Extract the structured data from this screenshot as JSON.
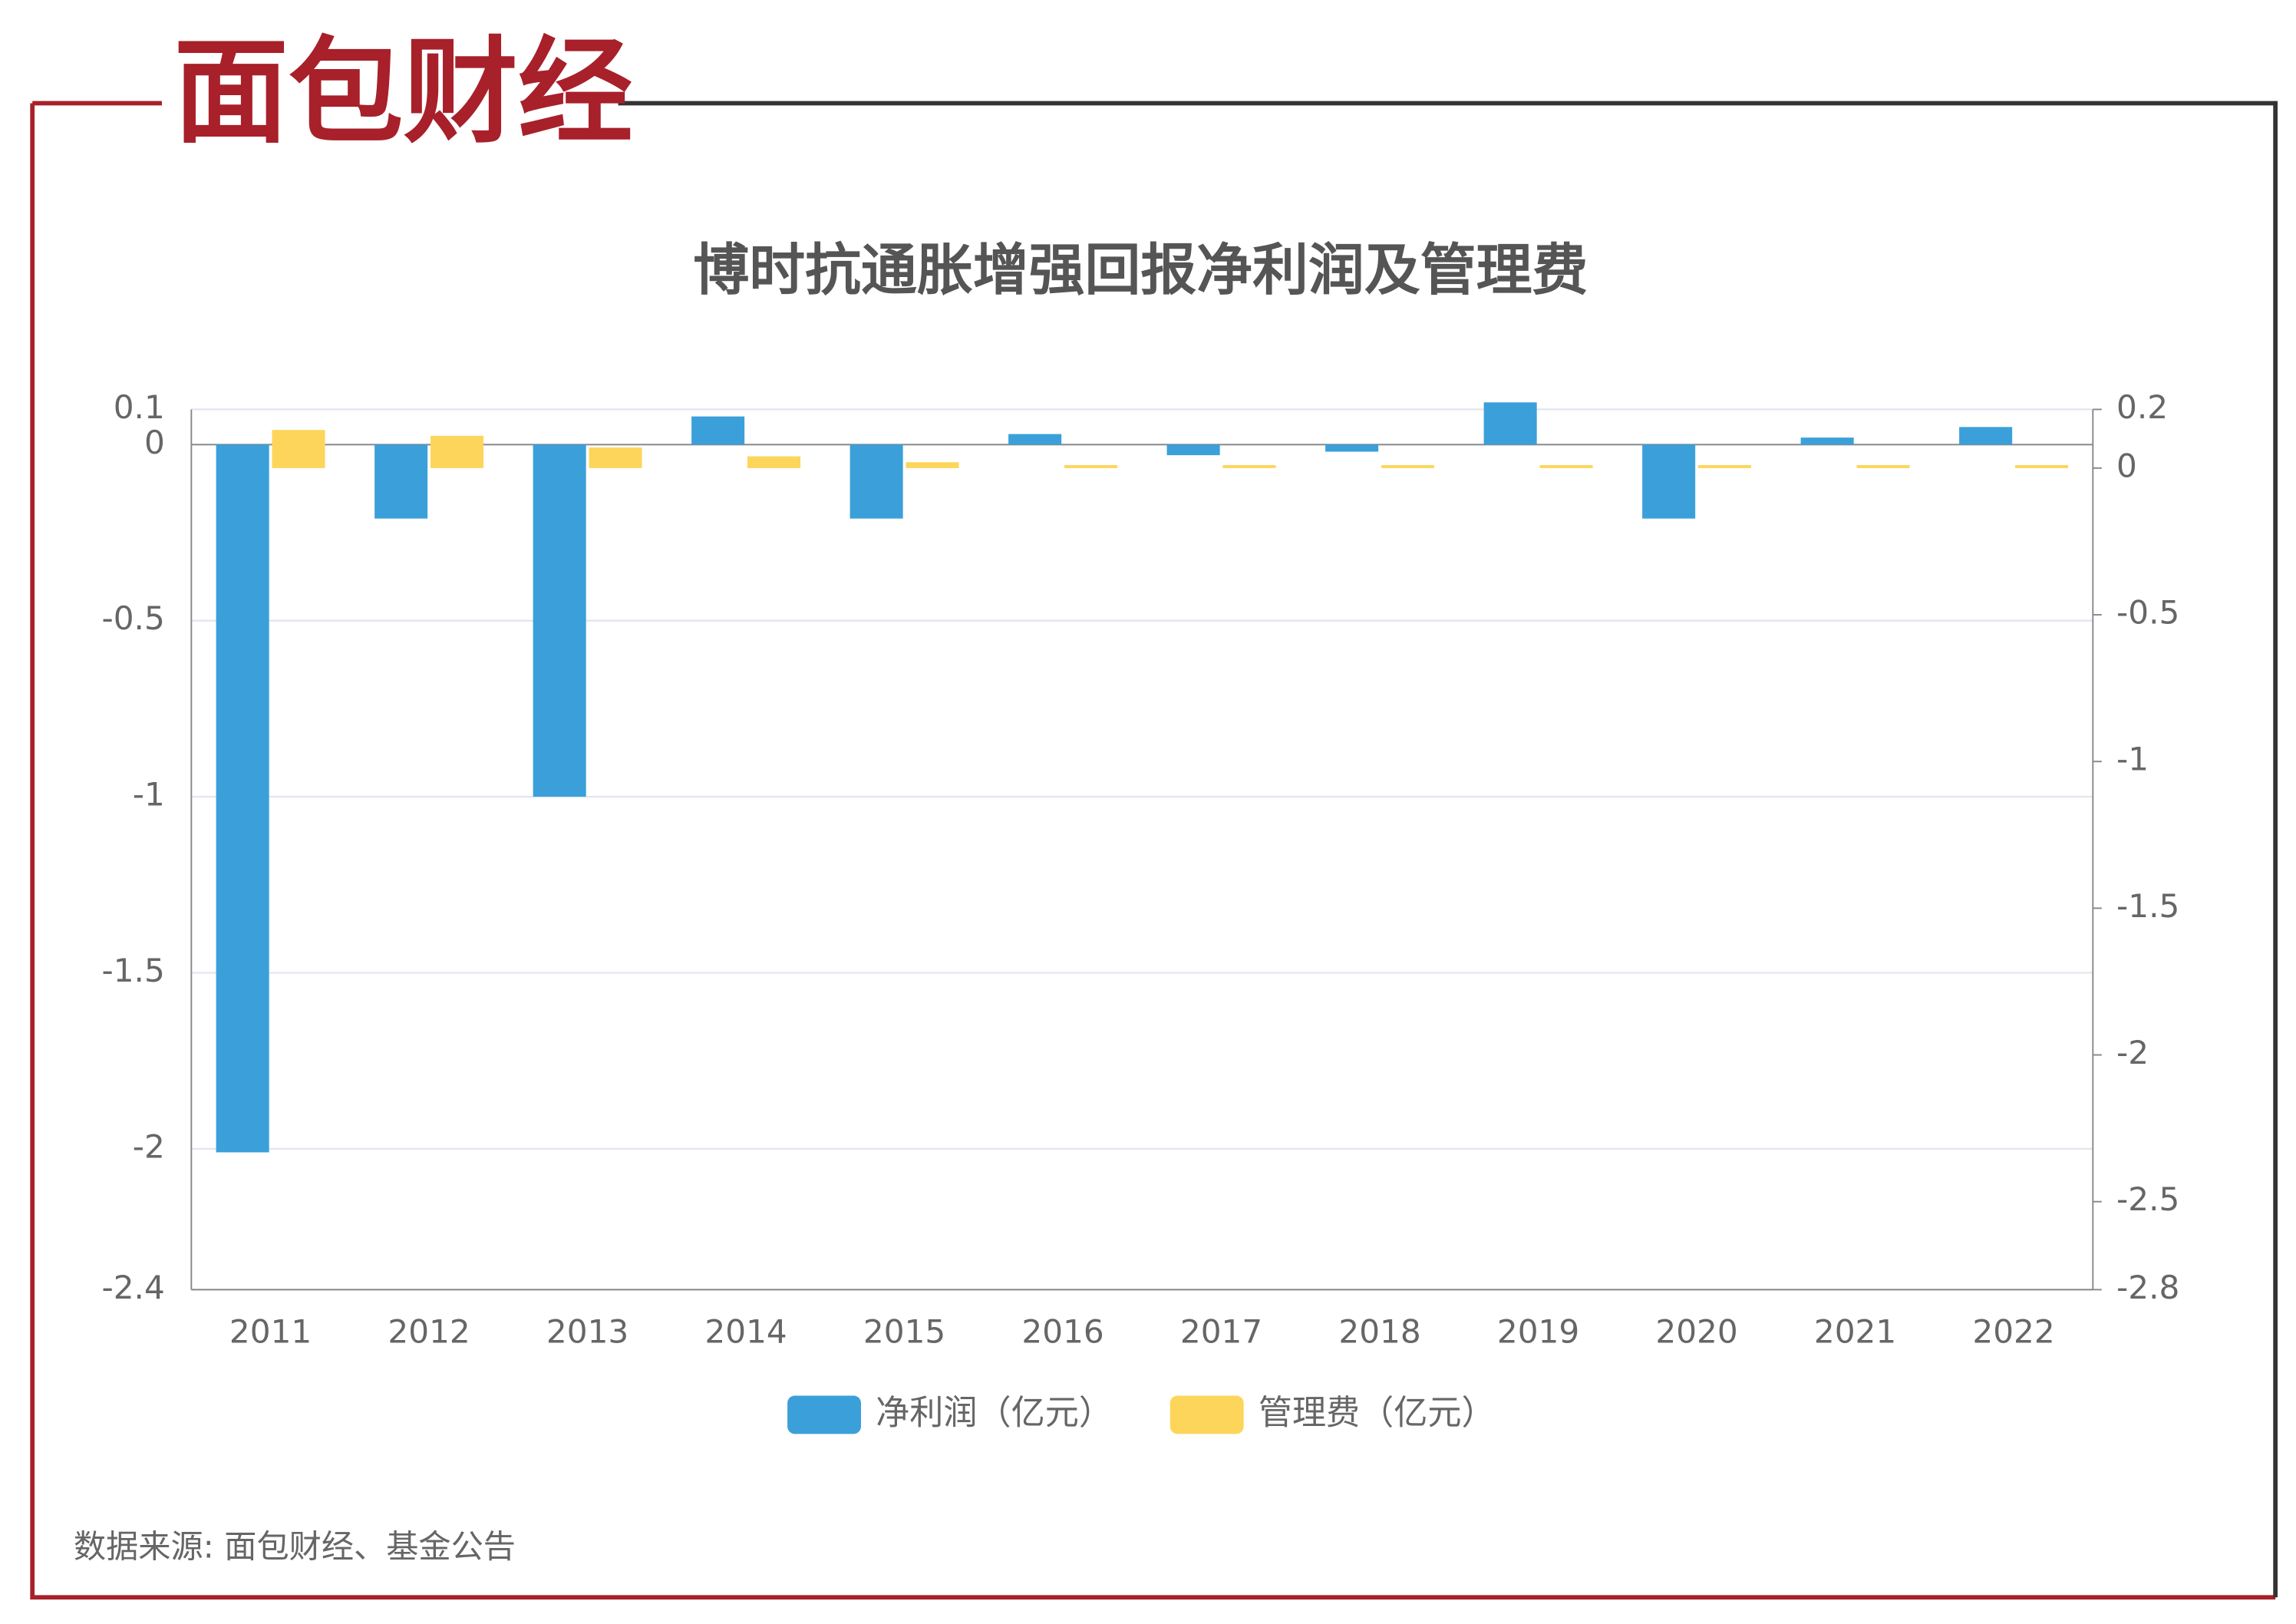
{
  "logo": "面包财经",
  "source": "数据来源: 面包财经、基金公告",
  "chart_data": {
    "type": "bar",
    "title": "博时抗通胀增强回报净利润及管理费",
    "categories": [
      "2011",
      "2012",
      "2013",
      "2014",
      "2015",
      "2016",
      "2017",
      "2018",
      "2019",
      "2020",
      "2021",
      "2022"
    ],
    "series": [
      {
        "name": "净利润（亿元）",
        "color": "#3ba0d9",
        "values": [
          -2.01,
          -0.21,
          -1.0,
          0.08,
          -0.21,
          0.03,
          -0.03,
          -0.02,
          0.12,
          -0.21,
          0.02,
          0.05
        ]
      },
      {
        "name": "管理费（亿元）",
        "color": "#fdd55a",
        "axis": "y2",
        "values": [
          0.13,
          0.11,
          0.07,
          0.04,
          0.02,
          0.01,
          0.01,
          0.01,
          0.01,
          0.01,
          0.01,
          0.01
        ]
      }
    ],
    "ylim": [
      -2.4,
      0.1
    ],
    "yticks": [
      0.1,
      0,
      -0.5,
      -1,
      -1.5,
      -2,
      -2.4
    ],
    "y2lim": [
      -2.8,
      0.2
    ],
    "y2ticks": [
      0.2,
      0,
      -0.5,
      -1,
      -1.5,
      -2,
      -2.5,
      -2.8
    ],
    "grid": true,
    "legend": "bottom"
  }
}
